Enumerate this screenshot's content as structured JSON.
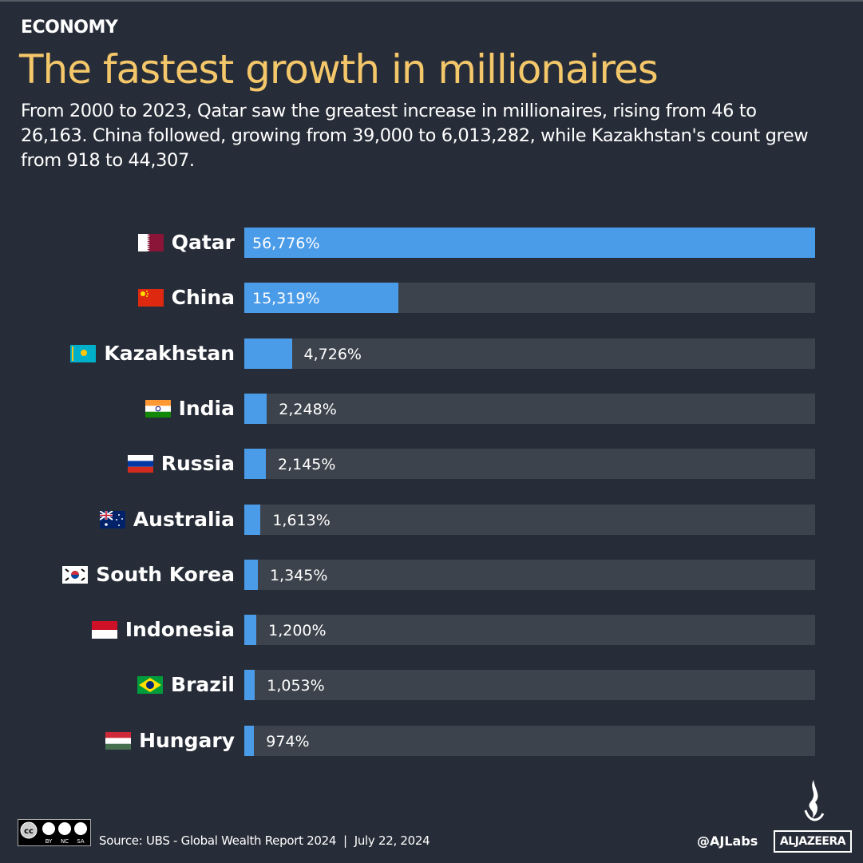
{
  "header": {
    "kicker": "ECONOMY",
    "title": "The fastest growth in millionaires",
    "subtitle": "From 2000 to 2023, Qatar saw the greatest increase in millionaires, rising from 46 to 26,163. China followed, growing from 39,000 to 6,013,282, while Kazakhstan's count grew from 918 to 44,307."
  },
  "chart_data": {
    "type": "bar",
    "orientation": "horizontal",
    "categories": [
      "Qatar",
      "China",
      "Kazakhstan",
      "India",
      "Russia",
      "Australia",
      "South Korea",
      "Indonesia",
      "Brazil",
      "Hungary"
    ],
    "values": [
      56776,
      15319,
      4726,
      2248,
      2145,
      1613,
      1345,
      1200,
      1053,
      974
    ],
    "value_labels": [
      "56,776%",
      "15,319%",
      "4,726%",
      "2,248%",
      "2,145%",
      "1,613%",
      "1,345%",
      "1,200%",
      "1,053%",
      "974%"
    ],
    "flags": [
      "flag-qatar",
      "flag-china",
      "flag-kazakhstan",
      "flag-india",
      "flag-russia",
      "flag-australia",
      "flag-south-korea",
      "flag-indonesia",
      "flag-brazil",
      "flag-hungary"
    ],
    "xlim": [
      0,
      56776
    ],
    "grid": false,
    "colors": {
      "bar": "#4a9be8",
      "track": "#3d434c",
      "background": "#272d38",
      "title": "#f4c76a"
    }
  },
  "footer": {
    "license_labels": [
      "BY",
      "NC",
      "SA"
    ],
    "source": "Source: UBS - Global Wealth Report 2024  |  July 22, 2024",
    "handle": "@AJLabs",
    "brand": "ALJAZEERA"
  }
}
